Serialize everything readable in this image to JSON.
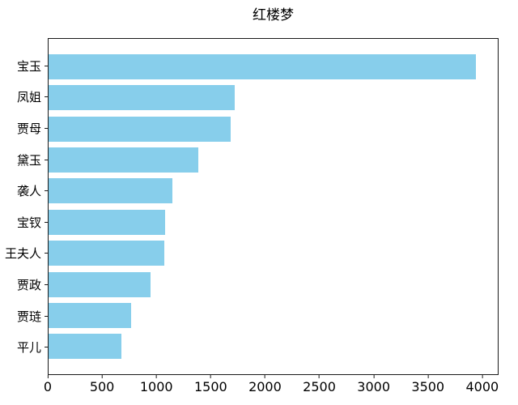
{
  "chart_data": {
    "type": "bar",
    "orientation": "horizontal",
    "title": "红楼梦",
    "categories": [
      "宝玉",
      "凤姐",
      "贾母",
      "黛玉",
      "袭人",
      "宝钗",
      "王夫人",
      "贾政",
      "贾琏",
      "平儿"
    ],
    "values": [
      3950,
      1720,
      1685,
      1380,
      1145,
      1075,
      1070,
      945,
      765,
      670
    ],
    "xlabel": "",
    "ylabel": "",
    "xlim": [
      0,
      4150
    ],
    "xticks": [
      0,
      500,
      1000,
      1500,
      2000,
      2500,
      3000,
      3500,
      4000
    ],
    "bar_color": "#87CEEB",
    "frame_color": "#1a1a1a",
    "background_color": "#ffffff",
    "grid": false,
    "legend": false
  }
}
